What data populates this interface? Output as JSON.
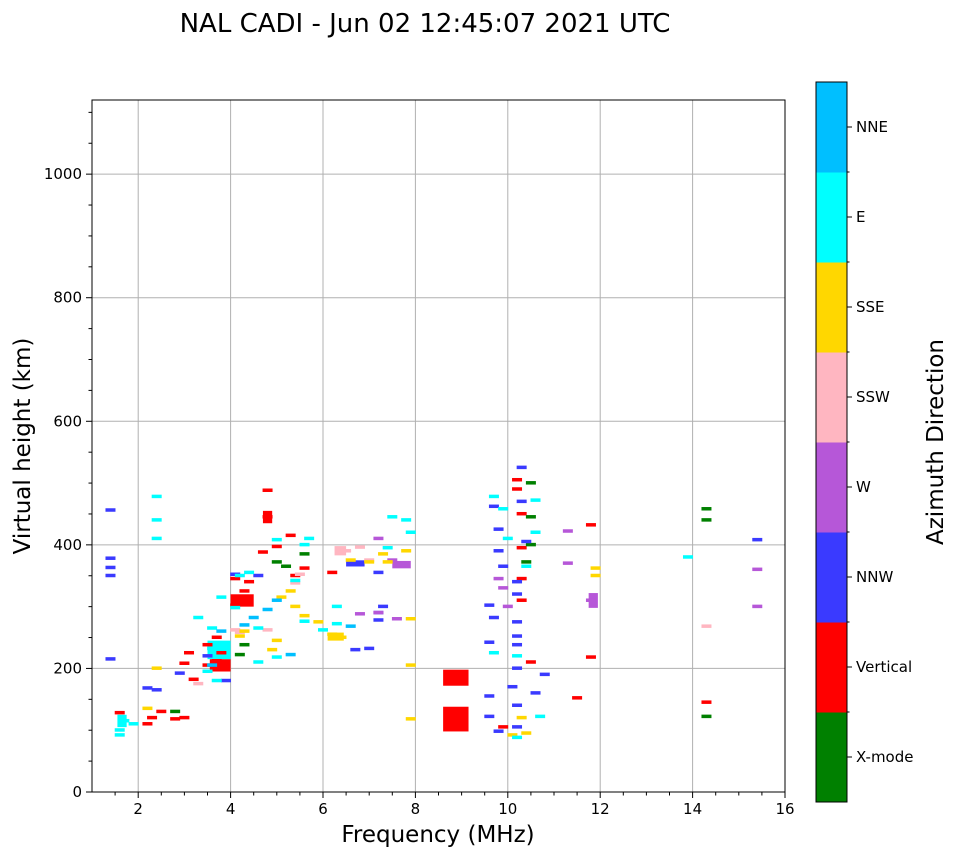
{
  "chart_data": {
    "type": "scatter",
    "title": "NAL CADI - Jun 02 12:45:07 2021 UTC",
    "xlabel": "Frequency (MHz)",
    "ylabel": "Virtual height (km)",
    "xlim": [
      1,
      16
    ],
    "ylim": [
      0,
      1120
    ],
    "xticks": [
      2,
      4,
      6,
      8,
      10,
      12,
      14,
      16
    ],
    "yticks": [
      0,
      200,
      400,
      600,
      800,
      1000
    ],
    "grid": true,
    "colorbar": {
      "label": "Azimuth Direction",
      "categories": [
        {
          "name": "X-mode",
          "color": "#008000"
        },
        {
          "name": "Vertical",
          "color": "#ff0000"
        },
        {
          "name": "NNW",
          "color": "#3a3aff"
        },
        {
          "name": "W",
          "color": "#b657d8"
        },
        {
          "name": "SSW",
          "color": "#ffb6c1"
        },
        {
          "name": "SSE",
          "color": "#ffd700"
        },
        {
          "name": "E",
          "color": "#00ffff"
        },
        {
          "name": "NNE",
          "color": "#00bfff"
        }
      ]
    },
    "series": [
      {
        "name": "Vertical",
        "points": [
          [
            1.6,
            128
          ],
          [
            2.2,
            110
          ],
          [
            2.3,
            120
          ],
          [
            2.5,
            130
          ],
          [
            2.8,
            118
          ],
          [
            3.0,
            120
          ],
          [
            3.0,
            208
          ],
          [
            3.1,
            225
          ],
          [
            3.2,
            182
          ],
          [
            3.5,
            205
          ],
          [
            3.7,
            212
          ],
          [
            3.8,
            225
          ],
          [
            3.5,
            238
          ],
          [
            3.7,
            250
          ],
          [
            4.1,
            302
          ],
          [
            4.2,
            315
          ],
          [
            4.3,
            325
          ],
          [
            4.4,
            340
          ],
          [
            4.1,
            345
          ],
          [
            4.8,
            445
          ],
          [
            4.8,
            488
          ],
          [
            5.4,
            350
          ],
          [
            5.6,
            362
          ],
          [
            6.2,
            355
          ],
          [
            9.9,
            105
          ],
          [
            10.2,
            505
          ],
          [
            10.2,
            490
          ],
          [
            10.3,
            450
          ],
          [
            10.3,
            395
          ],
          [
            10.3,
            345
          ],
          [
            10.3,
            310
          ],
          [
            10.5,
            210
          ],
          [
            11.5,
            152
          ],
          [
            11.8,
            218
          ],
          [
            11.8,
            432
          ],
          [
            14.3,
            145
          ],
          [
            4.7,
            388
          ],
          [
            5.0,
            397
          ],
          [
            5.3,
            415
          ]
        ]
      },
      {
        "name": "X-mode",
        "points": [
          [
            4.2,
            222
          ],
          [
            4.3,
            238
          ],
          [
            5.0,
            372
          ],
          [
            5.2,
            365
          ],
          [
            5.6,
            385
          ],
          [
            10.5,
            500
          ],
          [
            10.5,
            445
          ],
          [
            10.5,
            400
          ],
          [
            10.4,
            372
          ],
          [
            14.3,
            458
          ],
          [
            14.3,
            440
          ],
          [
            14.3,
            122
          ],
          [
            2.8,
            130
          ]
        ]
      },
      {
        "name": "NNW",
        "points": [
          [
            1.4,
            456
          ],
          [
            1.4,
            378
          ],
          [
            1.4,
            363
          ],
          [
            1.4,
            350
          ],
          [
            1.4,
            215
          ],
          [
            2.2,
            168
          ],
          [
            2.4,
            165
          ],
          [
            2.9,
            192
          ],
          [
            3.5,
            220
          ],
          [
            3.9,
            180
          ],
          [
            4.1,
            352
          ],
          [
            4.6,
            350
          ],
          [
            6.7,
            230
          ],
          [
            7.0,
            232
          ],
          [
            7.2,
            278
          ],
          [
            7.2,
            290
          ],
          [
            7.3,
            300
          ],
          [
            6.7,
            370
          ],
          [
            7.2,
            355
          ],
          [
            9.6,
            302
          ],
          [
            9.7,
            282
          ],
          [
            9.6,
            242
          ],
          [
            9.6,
            155
          ],
          [
            9.6,
            122
          ],
          [
            9.7,
            462
          ],
          [
            9.8,
            425
          ],
          [
            9.8,
            390
          ],
          [
            9.9,
            365
          ],
          [
            10.2,
            340
          ],
          [
            10.2,
            275
          ],
          [
            10.2,
            252
          ],
          [
            10.2,
            238
          ],
          [
            10.2,
            200
          ],
          [
            10.1,
            170
          ],
          [
            10.2,
            140
          ],
          [
            10.2,
            105
          ],
          [
            9.8,
            98
          ],
          [
            10.3,
            525
          ],
          [
            10.4,
            405
          ],
          [
            10.6,
            160
          ],
          [
            10.8,
            190
          ],
          [
            15.4,
            408
          ],
          [
            10.2,
            320
          ],
          [
            10.3,
            470
          ]
        ]
      },
      {
        "name": "W",
        "points": [
          [
            6.8,
            288
          ],
          [
            7.2,
            290
          ],
          [
            7.6,
            280
          ],
          [
            7.7,
            368
          ],
          [
            7.5,
            375
          ],
          [
            7.2,
            410
          ],
          [
            11.3,
            370
          ],
          [
            11.3,
            422
          ],
          [
            11.8,
            310
          ],
          [
            15.4,
            300
          ],
          [
            15.4,
            360
          ],
          [
            9.9,
            330
          ],
          [
            10.0,
            300
          ],
          [
            9.8,
            345
          ]
        ]
      },
      {
        "name": "SSW",
        "points": [
          [
            6.5,
            390
          ],
          [
            6.8,
            396
          ],
          [
            7.0,
            375
          ],
          [
            14.3,
            268
          ],
          [
            4.2,
            258
          ],
          [
            4.1,
            262
          ],
          [
            3.3,
            175
          ],
          [
            5.4,
            338
          ],
          [
            5.5,
            352
          ],
          [
            4.8,
            262
          ]
        ]
      },
      {
        "name": "SSE",
        "points": [
          [
            2.2,
            135
          ],
          [
            2.4,
            200
          ],
          [
            4.2,
            252
          ],
          [
            4.3,
            260
          ],
          [
            5.4,
            300
          ],
          [
            5.6,
            285
          ],
          [
            5.9,
            275
          ],
          [
            6.2,
            255
          ],
          [
            6.4,
            250
          ],
          [
            6.6,
            375
          ],
          [
            7.0,
            372
          ],
          [
            7.4,
            372
          ],
          [
            7.3,
            385
          ],
          [
            7.8,
            390
          ],
          [
            7.9,
            280
          ],
          [
            7.9,
            205
          ],
          [
            7.9,
            118
          ],
          [
            11.9,
            362
          ],
          [
            11.9,
            350
          ],
          [
            10.1,
            92
          ],
          [
            10.4,
            95
          ],
          [
            10.3,
            120
          ],
          [
            5.1,
            315
          ],
          [
            5.3,
            325
          ],
          [
            4.9,
            230
          ],
          [
            5.0,
            245
          ]
        ]
      },
      {
        "name": "E",
        "points": [
          [
            1.6,
            100
          ],
          [
            1.7,
            115
          ],
          [
            1.6,
            92
          ],
          [
            1.9,
            110
          ],
          [
            2.4,
            478
          ],
          [
            2.4,
            440
          ],
          [
            2.4,
            410
          ],
          [
            3.5,
            195
          ],
          [
            3.6,
            232
          ],
          [
            3.7,
            180
          ],
          [
            3.8,
            315
          ],
          [
            4.1,
            298
          ],
          [
            4.2,
            350
          ],
          [
            4.4,
            355
          ],
          [
            5.6,
            400
          ],
          [
            5.7,
            410
          ],
          [
            6.0,
            262
          ],
          [
            6.3,
            272
          ],
          [
            6.3,
            300
          ],
          [
            7.4,
            395
          ],
          [
            7.5,
            445
          ],
          [
            7.8,
            440
          ],
          [
            7.9,
            420
          ],
          [
            9.7,
            478
          ],
          [
            9.9,
            458
          ],
          [
            10.0,
            410
          ],
          [
            9.7,
            225
          ],
          [
            10.4,
            365
          ],
          [
            10.6,
            472
          ],
          [
            10.6,
            420
          ],
          [
            10.2,
            220
          ],
          [
            10.2,
            88
          ],
          [
            10.7,
            122
          ],
          [
            13.9,
            380
          ],
          [
            5.0,
            218
          ],
          [
            5.0,
            408
          ],
          [
            3.3,
            282
          ],
          [
            3.6,
            265
          ],
          [
            4.6,
            265
          ],
          [
            4.6,
            210
          ],
          [
            5.4,
            342
          ],
          [
            5.6,
            276
          ]
        ]
      },
      {
        "name": "NNE",
        "points": [
          [
            3.6,
            205
          ],
          [
            3.8,
            260
          ],
          [
            4.3,
            270
          ],
          [
            4.5,
            282
          ],
          [
            4.8,
            295
          ],
          [
            5.0,
            310
          ],
          [
            5.3,
            222
          ],
          [
            6.6,
            268
          ]
        ]
      }
    ],
    "blocks": [
      {
        "series": "Vertical",
        "x0": 8.6,
        "x1": 9.15,
        "y0": 98,
        "y1": 138
      },
      {
        "series": "Vertical",
        "x0": 8.6,
        "x1": 9.15,
        "y0": 172,
        "y1": 198
      },
      {
        "series": "Vertical",
        "x0": 3.55,
        "x1": 4.0,
        "y0": 195,
        "y1": 215
      },
      {
        "series": "Vertical",
        "x0": 4.0,
        "x1": 4.5,
        "y0": 300,
        "y1": 320
      },
      {
        "series": "Vertical",
        "x0": 4.7,
        "x1": 4.9,
        "y0": 435,
        "y1": 455
      },
      {
        "series": "E",
        "x0": 1.55,
        "x1": 1.75,
        "y0": 105,
        "y1": 125
      },
      {
        "series": "E",
        "x0": 3.5,
        "x1": 4.0,
        "y0": 215,
        "y1": 245
      },
      {
        "series": "SSE",
        "x0": 6.1,
        "x1": 6.45,
        "y0": 245,
        "y1": 258
      },
      {
        "series": "SSW",
        "x0": 6.25,
        "x1": 6.5,
        "y0": 383,
        "y1": 398
      },
      {
        "series": "NNW",
        "x0": 6.5,
        "x1": 6.9,
        "y0": 365,
        "y1": 375
      },
      {
        "series": "W",
        "x0": 7.5,
        "x1": 7.9,
        "y0": 362,
        "y1": 374
      },
      {
        "series": "W",
        "x0": 11.75,
        "x1": 11.95,
        "y0": 298,
        "y1": 322
      }
    ]
  }
}
